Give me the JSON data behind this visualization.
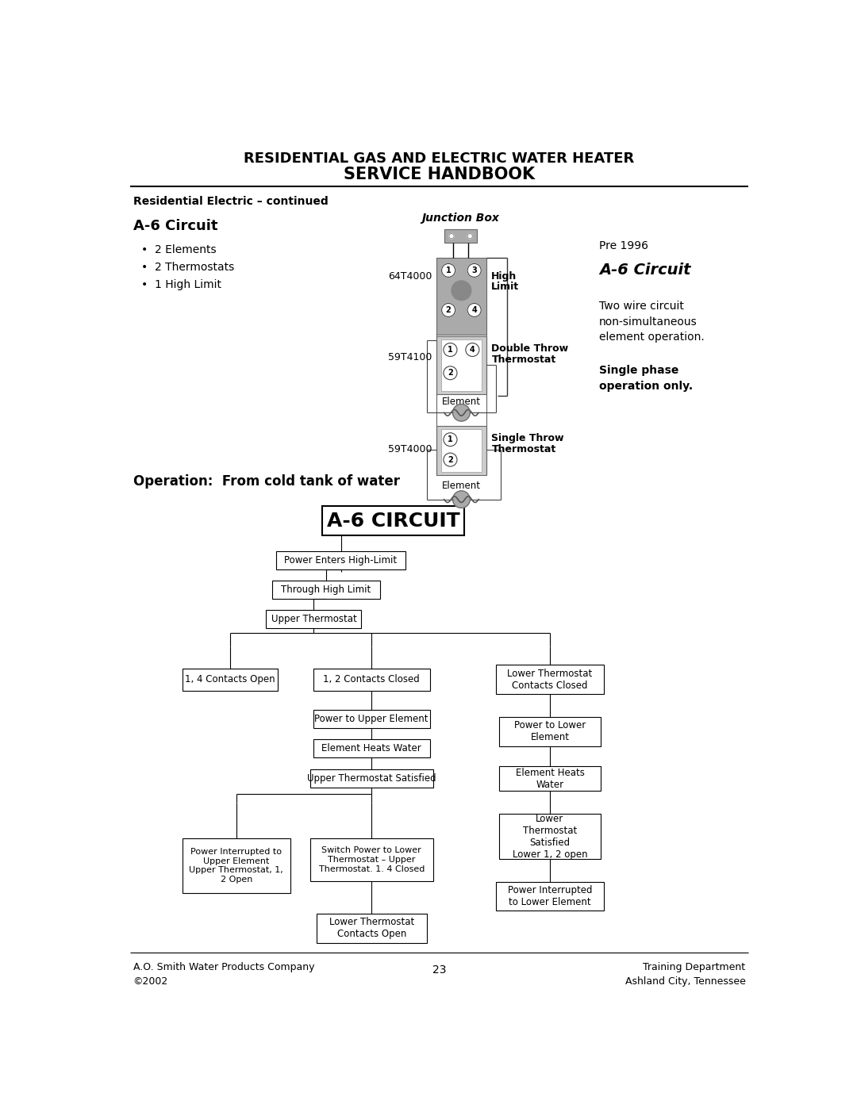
{
  "title_line1": "RESIDENTIAL GAS AND ELECTRIC WATER HEATER",
  "title_line2": "SERVICE HANDBOOK",
  "subtitle": "Residential Electric – continued",
  "section_title": "A-6 Circuit",
  "bullet_points": [
    "2 Elements",
    "2 Thermostats",
    "1 High Limit"
  ],
  "operation_header": "Operation:  From cold tank of water",
  "circuit_title": "A-6 CIRCUIT",
  "footer_left": "A.O. Smith Water Products Company\n©2002",
  "footer_center": "23",
  "footer_right": "Training Department\nAshland City, Tennessee",
  "bg_color": "#ffffff",
  "box_edge_color": "#000000",
  "text_color": "#000000",
  "gray_fill": "#aaaaaa",
  "gray_dark": "#888888",
  "gray_light": "#cccccc"
}
